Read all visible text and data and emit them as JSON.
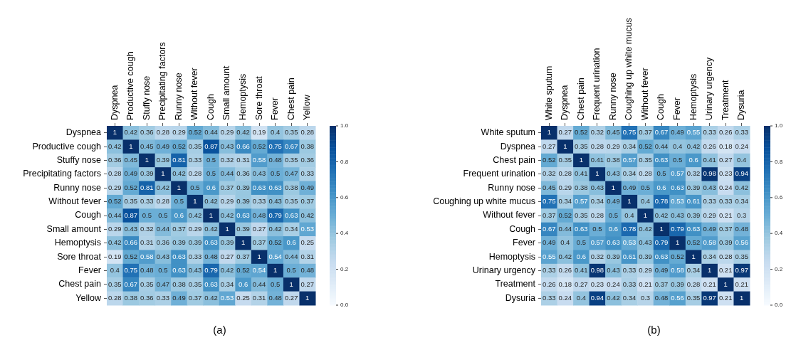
{
  "chart_data": [
    {
      "type": "heatmap",
      "annotations": [
        "(a)"
      ],
      "data_labels": true,
      "clim": [
        0,
        1
      ],
      "cticks": [
        {
          "value": 0,
          "label": "0.0"
        },
        {
          "value": 0.2,
          "label": "0.2"
        },
        {
          "value": 0.4,
          "label": "0.4"
        },
        {
          "value": 0.6,
          "label": "0.6"
        },
        {
          "value": 0.8,
          "label": "0.8"
        },
        {
          "value": 1,
          "label": "1.0"
        }
      ],
      "categories": [
        "Dyspnea",
        "Productive cough",
        "Stuffy nose",
        "Precipitating factors",
        "Runny nose",
        "Without fever",
        "Cough",
        "Small amount",
        "Hemoptysis",
        "Sore throat",
        "Fever",
        "Chest pain",
        "Yellow"
      ],
      "y_categories": [
        "Dyspnea",
        "Productive cough",
        "Stuffy nose",
        "Precipitating factors",
        "Runny nose",
        "Without fever",
        "Cough",
        "Small amount",
        "Hemoptysis",
        "Sore throat",
        "Fever",
        "Chest pain",
        "Yellow"
      ],
      "cells": [
        [
          1,
          0.42,
          0.36,
          0.28,
          0.29,
          0.52,
          0.44,
          0.29,
          0.42,
          0.19,
          0.4,
          0.35,
          0.28
        ],
        [
          0.42,
          1,
          0.45,
          0.49,
          0.52,
          0.35,
          0.87,
          0.43,
          0.66,
          0.52,
          0.75,
          0.67,
          0.38
        ],
        [
          0.36,
          0.45,
          1,
          0.39,
          0.81,
          0.33,
          0.5,
          0.32,
          0.31,
          0.58,
          0.48,
          0.35,
          0.36
        ],
        [
          0.28,
          0.49,
          0.39,
          1,
          0.42,
          0.28,
          0.5,
          0.44,
          0.36,
          0.43,
          0.5,
          0.47,
          0.33
        ],
        [
          0.29,
          0.52,
          0.81,
          0.42,
          1,
          0.5,
          0.6,
          0.37,
          0.39,
          0.63,
          0.63,
          0.38,
          0.49
        ],
        [
          0.52,
          0.35,
          0.33,
          0.28,
          0.5,
          1,
          0.42,
          0.29,
          0.39,
          0.33,
          0.43,
          0.35,
          0.37
        ],
        [
          0.44,
          0.87,
          0.5,
          0.5,
          0.6,
          0.42,
          1,
          0.42,
          0.63,
          0.48,
          0.79,
          0.63,
          0.42
        ],
        [
          0.29,
          0.43,
          0.32,
          0.44,
          0.37,
          0.29,
          0.42,
          1,
          0.39,
          0.27,
          0.42,
          0.34,
          0.53
        ],
        [
          0.42,
          0.66,
          0.31,
          0.36,
          0.39,
          0.39,
          0.63,
          0.39,
          1,
          0.37,
          0.52,
          0.6,
          0.25
        ],
        [
          0.19,
          0.52,
          0.58,
          0.43,
          0.63,
          0.33,
          0.48,
          0.27,
          0.37,
          1,
          0.54,
          0.44,
          0.31
        ],
        [
          0.4,
          0.75,
          0.48,
          0.5,
          0.63,
          0.43,
          0.79,
          0.42,
          0.52,
          0.54,
          1,
          0.5,
          0.48
        ],
        [
          0.35,
          0.67,
          0.35,
          0.47,
          0.38,
          0.35,
          0.63,
          0.34,
          0.6,
          0.44,
          0.5,
          1,
          0.27
        ],
        [
          0.28,
          0.38,
          0.36,
          0.33,
          0.49,
          0.37,
          0.42,
          0.53,
          0.25,
          0.31,
          0.48,
          0.27,
          1
        ]
      ]
    },
    {
      "type": "heatmap",
      "annotations": [
        "(b)"
      ],
      "data_labels": true,
      "clim": [
        0,
        1
      ],
      "cticks": [
        {
          "value": 0,
          "label": "0.0"
        },
        {
          "value": 0.2,
          "label": "0.2"
        },
        {
          "value": 0.4,
          "label": "0.4"
        },
        {
          "value": 0.6,
          "label": "0.6"
        },
        {
          "value": 0.8,
          "label": "0.8"
        },
        {
          "value": 1,
          "label": "1.0"
        }
      ],
      "categories": [
        "White sputum",
        "Dyspnea",
        "Chest pain",
        "Frequent urination",
        "Runny nose",
        "Coughing up white mucus",
        "Without fever",
        "Cough",
        "Fever",
        "Hemoptysis",
        "Urinary urgency",
        "Treatment",
        "Dysuria"
      ],
      "y_categories": [
        "White sputum",
        "Dyspnea",
        "Chest pain",
        "Frequent urination",
        "Runny nose",
        "Coughing up white mucus",
        "Without fever",
        "Cough",
        "Fever",
        "Hemoptysis",
        "Urinary urgency",
        "Treatment",
        "Dysuria"
      ],
      "cells": [
        [
          1,
          0.27,
          0.52,
          0.32,
          0.45,
          0.75,
          0.37,
          0.67,
          0.49,
          0.55,
          0.33,
          0.26,
          0.33
        ],
        [
          0.27,
          1,
          0.35,
          0.28,
          0.29,
          0.34,
          0.52,
          0.44,
          0.4,
          0.42,
          0.26,
          0.18,
          0.24
        ],
        [
          0.52,
          0.35,
          1,
          0.41,
          0.38,
          0.57,
          0.35,
          0.63,
          0.5,
          0.6,
          0.41,
          0.27,
          0.4
        ],
        [
          0.32,
          0.28,
          0.41,
          1,
          0.43,
          0.34,
          0.28,
          0.5,
          0.57,
          0.32,
          0.98,
          0.23,
          0.94
        ],
        [
          0.45,
          0.29,
          0.38,
          0.43,
          1,
          0.49,
          0.5,
          0.6,
          0.63,
          0.39,
          0.43,
          0.24,
          0.42
        ],
        [
          0.75,
          0.34,
          0.57,
          0.34,
          0.49,
          1,
          0.4,
          0.78,
          0.53,
          0.61,
          0.33,
          0.33,
          0.34
        ],
        [
          0.37,
          0.52,
          0.35,
          0.28,
          0.5,
          0.4,
          1,
          0.42,
          0.43,
          0.39,
          0.29,
          0.21,
          0.3
        ],
        [
          0.67,
          0.44,
          0.63,
          0.5,
          0.6,
          0.78,
          0.42,
          1,
          0.79,
          0.63,
          0.49,
          0.37,
          0.48
        ],
        [
          0.49,
          0.4,
          0.5,
          0.57,
          0.63,
          0.53,
          0.43,
          0.79,
          1,
          0.52,
          0.58,
          0.39,
          0.56
        ],
        [
          0.55,
          0.42,
          0.6,
          0.32,
          0.39,
          0.61,
          0.39,
          0.63,
          0.52,
          1,
          0.34,
          0.28,
          0.35
        ],
        [
          0.33,
          0.26,
          0.41,
          0.98,
          0.43,
          0.33,
          0.29,
          0.49,
          0.58,
          0.34,
          1,
          0.21,
          0.97
        ],
        [
          0.26,
          0.18,
          0.27,
          0.23,
          0.24,
          0.33,
          0.21,
          0.37,
          0.39,
          0.28,
          0.21,
          1,
          0.21
        ],
        [
          0.33,
          0.24,
          0.4,
          0.94,
          0.42,
          0.34,
          0.3,
          0.48,
          0.56,
          0.35,
          0.97,
          0.21,
          1
        ]
      ]
    }
  ]
}
